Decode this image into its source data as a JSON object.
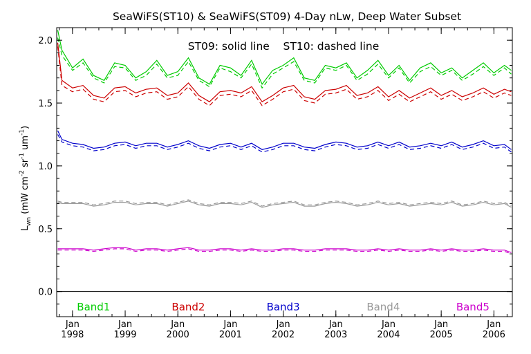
{
  "chart_data": {
    "type": "line",
    "title": "SeaWiFS(ST10) & SeaWiFS(ST09) 4-Day nLw, Deep Water Subset",
    "annotation": "ST09: solid line    ST10: dashed line",
    "ylabel_main": "L",
    "ylabel_sub": "wn",
    "ylabel_units": " (mW cm",
    "ylabel_sup1": "-2",
    "ylabel_mid": " sr",
    "ylabel_sup2": "-1",
    "ylabel_end": " um",
    "ylabel_sup3": "-1",
    "ylabel_close": ")",
    "xlim": [
      1997.7,
      2006.35
    ],
    "ylim": [
      -0.2,
      2.1
    ],
    "yticks": [
      0.0,
      0.5,
      1.0,
      1.5,
      2.0
    ],
    "ytick_labels": [
      "0.0",
      "0.5",
      "1.0",
      "1.5",
      "2.0"
    ],
    "xticks": [
      {
        "month": "Jan",
        "year": "1998",
        "x": 1998.0
      },
      {
        "month": "Jan",
        "year": "1999",
        "x": 1999.0
      },
      {
        "month": "Jan",
        "year": "2000",
        "x": 2000.0
      },
      {
        "month": "Jan",
        "year": "2001",
        "x": 2001.0
      },
      {
        "month": "Jan",
        "year": "2002",
        "x": 2002.0
      },
      {
        "month": "Jan",
        "year": "2003",
        "x": 2003.0
      },
      {
        "month": "Jan",
        "year": "2004",
        "x": 2004.0
      },
      {
        "month": "Jan",
        "year": "2005",
        "x": 2005.0
      },
      {
        "month": "Jan",
        "year": "2006",
        "x": 2006.0
      }
    ],
    "zero_line": 0.0,
    "band_labels": [
      {
        "text": "Band1",
        "color": "#00cc00",
        "x": 1998.4
      },
      {
        "text": "Band2",
        "color": "#cc0000",
        "x": 2000.2
      },
      {
        "text": "Band3",
        "color": "#0000cc",
        "x": 2002.0
      },
      {
        "text": "Band4",
        "color": "#999999",
        "x": 2003.9
      },
      {
        "text": "Band5",
        "color": "#cc00cc",
        "x": 2005.6
      }
    ],
    "x": [
      1997.72,
      1997.8,
      1998.0,
      1998.2,
      1998.4,
      1998.6,
      1998.8,
      1999.0,
      1999.2,
      1999.4,
      1999.6,
      1999.8,
      2000.0,
      2000.2,
      2000.4,
      2000.6,
      2000.8,
      2001.0,
      2001.2,
      2001.4,
      2001.6,
      2001.8,
      2002.0,
      2002.2,
      2002.4,
      2002.6,
      2002.8,
      2003.0,
      2003.2,
      2003.4,
      2003.6,
      2003.8,
      2004.0,
      2004.2,
      2004.4,
      2004.6,
      2004.8,
      2005.0,
      2005.2,
      2005.4,
      2005.6,
      2005.8,
      2006.0,
      2006.2,
      2006.33
    ],
    "series": [
      {
        "name": "Band1",
        "color": "#00cc00",
        "solid": [
          2.08,
          1.92,
          1.78,
          1.85,
          1.72,
          1.68,
          1.82,
          1.8,
          1.7,
          1.75,
          1.84,
          1.72,
          1.75,
          1.86,
          1.7,
          1.65,
          1.8,
          1.78,
          1.72,
          1.84,
          1.65,
          1.76,
          1.8,
          1.86,
          1.7,
          1.68,
          1.8,
          1.78,
          1.82,
          1.7,
          1.76,
          1.84,
          1.72,
          1.8,
          1.68,
          1.78,
          1.82,
          1.74,
          1.78,
          1.7,
          1.76,
          1.82,
          1.74,
          1.8,
          1.76
        ],
        "dashed": [
          2.02,
          1.88,
          1.76,
          1.82,
          1.7,
          1.66,
          1.79,
          1.78,
          1.68,
          1.72,
          1.81,
          1.7,
          1.72,
          1.83,
          1.68,
          1.63,
          1.78,
          1.75,
          1.7,
          1.81,
          1.62,
          1.73,
          1.78,
          1.83,
          1.68,
          1.66,
          1.78,
          1.76,
          1.8,
          1.68,
          1.73,
          1.81,
          1.7,
          1.78,
          1.66,
          1.75,
          1.79,
          1.72,
          1.76,
          1.68,
          1.73,
          1.79,
          1.72,
          1.78,
          1.73
        ]
      },
      {
        "name": "Band2",
        "color": "#cc0000",
        "solid": [
          1.98,
          1.68,
          1.62,
          1.64,
          1.56,
          1.54,
          1.62,
          1.63,
          1.58,
          1.61,
          1.62,
          1.56,
          1.58,
          1.66,
          1.56,
          1.51,
          1.59,
          1.6,
          1.58,
          1.63,
          1.51,
          1.56,
          1.62,
          1.64,
          1.55,
          1.53,
          1.6,
          1.61,
          1.64,
          1.56,
          1.58,
          1.63,
          1.55,
          1.6,
          1.54,
          1.58,
          1.62,
          1.56,
          1.6,
          1.55,
          1.58,
          1.62,
          1.57,
          1.61,
          1.59
        ],
        "dashed": [
          1.95,
          1.64,
          1.59,
          1.61,
          1.53,
          1.51,
          1.59,
          1.6,
          1.55,
          1.58,
          1.59,
          1.53,
          1.55,
          1.63,
          1.53,
          1.48,
          1.56,
          1.57,
          1.55,
          1.6,
          1.48,
          1.53,
          1.59,
          1.61,
          1.52,
          1.5,
          1.57,
          1.58,
          1.61,
          1.53,
          1.55,
          1.6,
          1.52,
          1.57,
          1.51,
          1.55,
          1.59,
          1.53,
          1.57,
          1.52,
          1.55,
          1.59,
          1.54,
          1.58,
          1.56
        ]
      },
      {
        "name": "Band3",
        "color": "#0000cc",
        "solid": [
          1.28,
          1.21,
          1.18,
          1.17,
          1.14,
          1.15,
          1.18,
          1.19,
          1.16,
          1.18,
          1.18,
          1.15,
          1.17,
          1.2,
          1.16,
          1.14,
          1.17,
          1.18,
          1.15,
          1.18,
          1.13,
          1.15,
          1.18,
          1.18,
          1.15,
          1.14,
          1.17,
          1.19,
          1.18,
          1.15,
          1.16,
          1.19,
          1.16,
          1.19,
          1.15,
          1.16,
          1.18,
          1.16,
          1.19,
          1.15,
          1.17,
          1.2,
          1.16,
          1.17,
          1.13
        ],
        "dashed": [
          1.25,
          1.19,
          1.16,
          1.15,
          1.12,
          1.13,
          1.16,
          1.17,
          1.14,
          1.16,
          1.16,
          1.13,
          1.15,
          1.18,
          1.14,
          1.12,
          1.15,
          1.16,
          1.13,
          1.16,
          1.11,
          1.13,
          1.16,
          1.16,
          1.13,
          1.12,
          1.15,
          1.17,
          1.16,
          1.13,
          1.14,
          1.17,
          1.14,
          1.17,
          1.13,
          1.14,
          1.16,
          1.14,
          1.17,
          1.13,
          1.15,
          1.18,
          1.14,
          1.15,
          1.11
        ]
      },
      {
        "name": "Band4",
        "color": "#999999",
        "solid": [
          0.71,
          0.7,
          0.7,
          0.7,
          0.68,
          0.69,
          0.71,
          0.71,
          0.69,
          0.7,
          0.7,
          0.68,
          0.7,
          0.72,
          0.69,
          0.68,
          0.7,
          0.7,
          0.69,
          0.71,
          0.67,
          0.69,
          0.7,
          0.71,
          0.68,
          0.68,
          0.7,
          0.71,
          0.7,
          0.68,
          0.69,
          0.71,
          0.69,
          0.7,
          0.68,
          0.69,
          0.7,
          0.69,
          0.71,
          0.68,
          0.69,
          0.71,
          0.69,
          0.7,
          0.67
        ],
        "dashed": [
          0.72,
          0.71,
          0.71,
          0.71,
          0.69,
          0.7,
          0.72,
          0.72,
          0.7,
          0.71,
          0.71,
          0.69,
          0.71,
          0.73,
          0.7,
          0.69,
          0.71,
          0.71,
          0.7,
          0.72,
          0.68,
          0.7,
          0.71,
          0.72,
          0.69,
          0.69,
          0.71,
          0.72,
          0.71,
          0.69,
          0.7,
          0.72,
          0.7,
          0.71,
          0.69,
          0.7,
          0.71,
          0.7,
          0.72,
          0.69,
          0.7,
          0.72,
          0.7,
          0.71,
          0.68
        ]
      },
      {
        "name": "Band5",
        "color": "#cc00cc",
        "solid": [
          0.34,
          0.34,
          0.34,
          0.34,
          0.33,
          0.34,
          0.35,
          0.35,
          0.33,
          0.34,
          0.34,
          0.33,
          0.34,
          0.35,
          0.33,
          0.33,
          0.34,
          0.34,
          0.33,
          0.34,
          0.33,
          0.33,
          0.34,
          0.34,
          0.33,
          0.33,
          0.34,
          0.34,
          0.34,
          0.33,
          0.33,
          0.34,
          0.33,
          0.34,
          0.33,
          0.33,
          0.34,
          0.33,
          0.34,
          0.33,
          0.33,
          0.34,
          0.33,
          0.33,
          0.31
        ],
        "dashed": [
          0.33,
          0.33,
          0.33,
          0.33,
          0.32,
          0.33,
          0.34,
          0.34,
          0.32,
          0.33,
          0.33,
          0.32,
          0.33,
          0.34,
          0.32,
          0.32,
          0.33,
          0.33,
          0.32,
          0.33,
          0.32,
          0.32,
          0.33,
          0.33,
          0.32,
          0.32,
          0.33,
          0.33,
          0.33,
          0.32,
          0.32,
          0.33,
          0.32,
          0.33,
          0.32,
          0.32,
          0.33,
          0.32,
          0.33,
          0.32,
          0.32,
          0.33,
          0.32,
          0.32,
          0.3
        ]
      }
    ]
  }
}
